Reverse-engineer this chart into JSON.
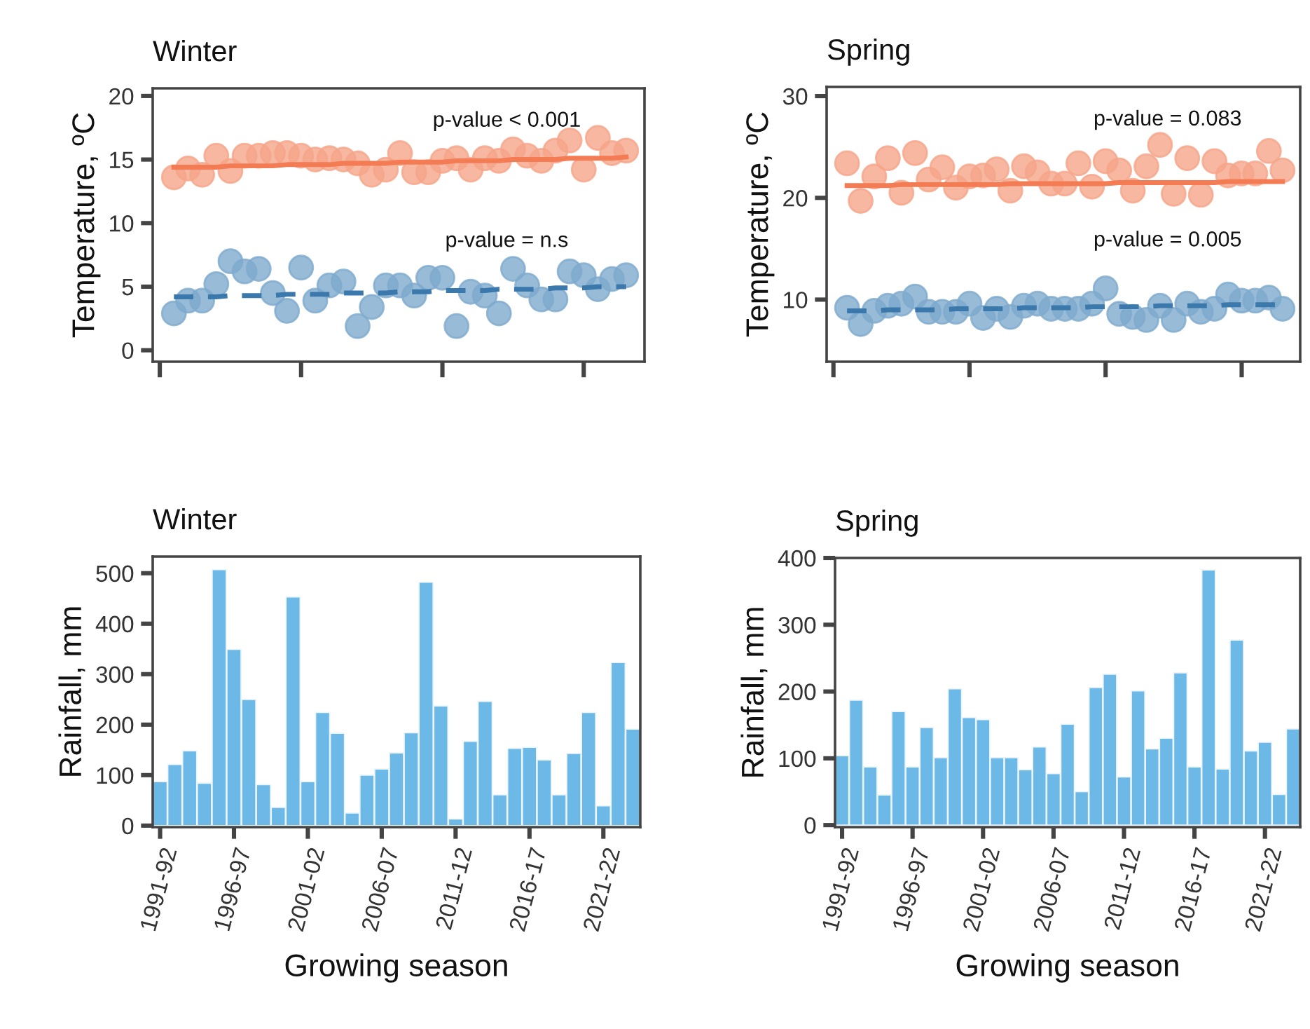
{
  "chart_data": [
    {
      "type": "scatter",
      "title": "Winter",
      "ylabel": "Temperature, ºC",
      "ylim": [
        -0.9,
        20.6
      ],
      "yticks": [
        0,
        5,
        10,
        15,
        20
      ],
      "tick_labels": "y",
      "grid": false,
      "marker": "circle",
      "categories": [
        null,
        null,
        null,
        null,
        null,
        null,
        null,
        null,
        null,
        null,
        null,
        null,
        null,
        null,
        null,
        null,
        null,
        null,
        null,
        null,
        null,
        null,
        null,
        null,
        null,
        null,
        null,
        null,
        null,
        null,
        null,
        null,
        null
      ],
      "series": [
        {
          "color": "#f5a58a",
          "values": [
            13.6,
            14.3,
            13.8,
            15.3,
            14.1,
            15.3,
            15.3,
            15.5,
            15.5,
            15.3,
            15.0,
            15.1,
            15.0,
            14.7,
            13.8,
            14.2,
            15.5,
            14.0,
            14.0,
            14.9,
            15.1,
            14.2,
            15.1,
            14.9,
            15.8,
            15.3,
            14.9,
            15.7,
            16.5,
            14.2,
            16.7,
            15.5,
            15.7
          ]
        },
        {
          "color": "#7eaacd",
          "values": [
            2.9,
            3.9,
            3.9,
            5.2,
            7.0,
            6.2,
            6.4,
            4.5,
            3.1,
            6.5,
            3.9,
            5.1,
            5.4,
            1.9,
            3.4,
            5.1,
            5.1,
            4.3,
            5.7,
            5.7,
            1.9,
            4.6,
            4.3,
            2.9,
            6.4,
            5.1,
            4.0,
            4.0,
            6.2,
            5.9,
            4.8,
            5.6,
            5.9
          ]
        },
        {
          "type": "line",
          "marker": "none",
          "color": "#f47c55",
          "line_style": "solid",
          "values": [
            14.4,
            14.4,
            14.4,
            14.4,
            14.5,
            14.5,
            14.5,
            14.5,
            14.6,
            14.6,
            14.6,
            14.6,
            14.7,
            14.7,
            14.7,
            14.7,
            14.8,
            14.8,
            14.8,
            14.8,
            14.9,
            14.9,
            14.9,
            14.9,
            15.0,
            15.0,
            15.0,
            15.0,
            15.1,
            15.1,
            15.1,
            15.1,
            15.2
          ]
        },
        {
          "type": "line",
          "marker": "none",
          "color": "#3b78ab",
          "line_style": "dashed",
          "values": [
            4.2,
            4.2,
            4.2,
            4.2,
            4.3,
            4.3,
            4.3,
            4.3,
            4.4,
            4.4,
            4.4,
            4.4,
            4.5,
            4.5,
            4.5,
            4.5,
            4.6,
            4.6,
            4.6,
            4.7,
            4.7,
            4.7,
            4.7,
            4.8,
            4.8,
            4.8,
            4.8,
            4.9,
            4.9,
            4.9,
            5.0,
            5.0,
            5.0
          ]
        }
      ],
      "annotations": [
        "p-value < 0.001",
        "p-value = n.s"
      ]
    },
    {
      "type": "scatter",
      "title": "Spring",
      "ylabel": "Temperature, ºC",
      "ylim": [
        3.9,
        30.9
      ],
      "yticks": [
        10,
        20,
        30
      ],
      "tick_labels": "y",
      "grid": false,
      "marker": "circle",
      "categories": [
        null,
        null,
        null,
        null,
        null,
        null,
        null,
        null,
        null,
        null,
        null,
        null,
        null,
        null,
        null,
        null,
        null,
        null,
        null,
        null,
        null,
        null,
        null,
        null,
        null,
        null,
        null,
        null,
        null,
        null,
        null,
        null,
        null
      ],
      "series": [
        {
          "color": "#f5a58a",
          "values": [
            23.4,
            19.7,
            22.1,
            23.9,
            20.5,
            24.4,
            21.8,
            23.0,
            21.0,
            22.1,
            22.2,
            22.8,
            20.7,
            23.1,
            22.5,
            21.4,
            21.4,
            23.4,
            21.1,
            23.6,
            22.7,
            20.7,
            23.1,
            25.2,
            20.4,
            23.9,
            20.3,
            23.6,
            22.2,
            22.4,
            22.4,
            24.6,
            22.7
          ]
        },
        {
          "color": "#7eaacd",
          "values": [
            9.2,
            7.6,
            8.9,
            9.4,
            9.6,
            10.3,
            8.8,
            8.8,
            8.8,
            9.6,
            8.2,
            9.1,
            8.3,
            9.4,
            9.6,
            9.1,
            9.1,
            9.1,
            9.6,
            11.1,
            8.6,
            8.3,
            8.0,
            9.4,
            8.0,
            9.6,
            8.8,
            9.1,
            10.5,
            9.9,
            9.9,
            10.2,
            9.1
          ]
        },
        {
          "type": "line",
          "marker": "none",
          "color": "#f47c55",
          "line_style": "solid",
          "values": [
            21.2,
            21.2,
            21.2,
            21.2,
            21.3,
            21.3,
            21.3,
            21.3,
            21.3,
            21.3,
            21.3,
            21.3,
            21.4,
            21.4,
            21.4,
            21.4,
            21.4,
            21.4,
            21.4,
            21.4,
            21.5,
            21.5,
            21.5,
            21.5,
            21.5,
            21.5,
            21.5,
            21.5,
            21.6,
            21.6,
            21.6,
            21.6,
            21.6
          ]
        },
        {
          "type": "line",
          "marker": "none",
          "color": "#3b78ab",
          "line_style": "dashed",
          "values": [
            8.9,
            8.9,
            8.9,
            9.0,
            9.0,
            9.0,
            9.0,
            9.0,
            9.1,
            9.1,
            9.1,
            9.1,
            9.1,
            9.2,
            9.2,
            9.2,
            9.2,
            9.2,
            9.3,
            9.3,
            9.3,
            9.3,
            9.3,
            9.4,
            9.4,
            9.4,
            9.4,
            9.4,
            9.5,
            9.5,
            9.5,
            9.5,
            9.5
          ]
        }
      ],
      "annotations": [
        "p-value = 0.083",
        "p-value = 0.005"
      ]
    },
    {
      "type": "bar",
      "title": "Winter",
      "xlabel": "Growing season",
      "ylabel": "Rainfall, mm",
      "color": "#6cb8e6",
      "ylim": [
        -3,
        533
      ],
      "yticks": [
        0,
        100,
        200,
        300,
        400,
        500
      ],
      "grid": false,
      "categories": [
        "1991-92",
        null,
        null,
        null,
        null,
        "1996-97",
        null,
        null,
        null,
        null,
        "2001-02",
        null,
        null,
        null,
        null,
        "2006-07",
        null,
        null,
        null,
        null,
        "2011-12",
        null,
        null,
        null,
        null,
        "2016-17",
        null,
        null,
        null,
        null,
        "2021-22",
        null,
        null
      ],
      "values": [
        87,
        121,
        148,
        84,
        507,
        349,
        250,
        81,
        36,
        453,
        87,
        224,
        183,
        25,
        100,
        112,
        144,
        184,
        482,
        237,
        13,
        167,
        246,
        61,
        153,
        155,
        130,
        61,
        143,
        224,
        39,
        323,
        191
      ]
    },
    {
      "type": "bar",
      "title": "Spring",
      "xlabel": "Growing season",
      "ylabel": "Rainfall, mm",
      "color": "#6cb8e6",
      "ylim": [
        -3,
        400
      ],
      "yticks": [
        0,
        100,
        200,
        300,
        400
      ],
      "grid": false,
      "categories": [
        "1991-92",
        null,
        null,
        null,
        null,
        "1996-97",
        null,
        null,
        null,
        null,
        "2001-02",
        null,
        null,
        null,
        null,
        "2006-07",
        null,
        null,
        null,
        null,
        "2011-12",
        null,
        null,
        null,
        null,
        "2016-17",
        null,
        null,
        null,
        null,
        "2021-22",
        null,
        null
      ],
      "values": [
        104,
        187,
        87,
        45,
        170,
        87,
        146,
        101,
        204,
        161,
        158,
        101,
        101,
        83,
        117,
        77,
        151,
        50,
        206,
        226,
        72,
        201,
        114,
        130,
        228,
        87,
        382,
        84,
        277,
        111,
        124,
        46,
        144
      ]
    }
  ]
}
